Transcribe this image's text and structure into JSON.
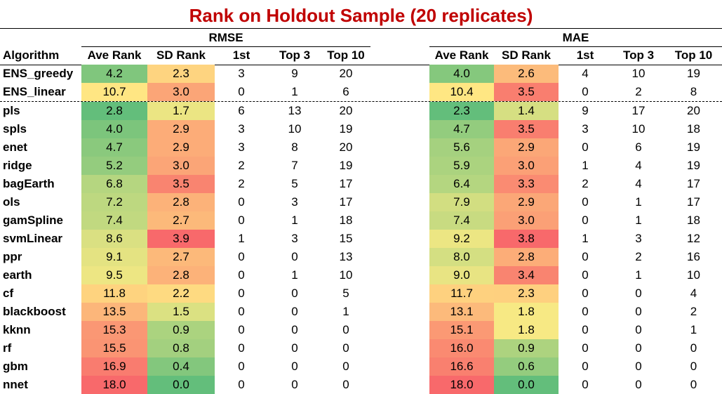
{
  "title": "Rank on Holdout Sample (20 replicates)",
  "groups": [
    "RMSE",
    "MAE"
  ],
  "headers": [
    "Algorithm",
    "Ave Rank",
    "SD Rank",
    "1st",
    "Top 3",
    "Top 10"
  ],
  "colors": {
    "title": "#c00000",
    "low": "#63be7b",
    "mid": "#ffeb84",
    "high": "#f8696b"
  },
  "chart_data": {
    "type": "table",
    "title": "Rank on Holdout Sample (20 replicates)",
    "columns": [
      "Algorithm",
      "Ave Rank",
      "SD Rank",
      "1st",
      "Top 3",
      "Top 10",
      "Ave Rank",
      "SD Rank",
      "1st",
      "Top 3",
      "Top 10"
    ],
    "rows": [
      {
        "algorithm": "ENS_greedy",
        "rmse": [
          "4.2",
          "2.3",
          "3",
          "9",
          "20"
        ],
        "mae": [
          "4.0",
          "2.6",
          "4",
          "10",
          "19"
        ]
      },
      {
        "algorithm": "ENS_linear",
        "rmse": [
          "10.7",
          "3.0",
          "0",
          "1",
          "6"
        ],
        "mae": [
          "10.4",
          "3.5",
          "0",
          "2",
          "8"
        ]
      },
      {
        "algorithm": "pls",
        "rmse": [
          "2.8",
          "1.7",
          "6",
          "13",
          "20"
        ],
        "mae": [
          "2.3",
          "1.4",
          "9",
          "17",
          "20"
        ]
      },
      {
        "algorithm": "spls",
        "rmse": [
          "4.0",
          "2.9",
          "3",
          "10",
          "19"
        ],
        "mae": [
          "4.7",
          "3.5",
          "3",
          "10",
          "18"
        ]
      },
      {
        "algorithm": "enet",
        "rmse": [
          "4.7",
          "2.9",
          "3",
          "8",
          "20"
        ],
        "mae": [
          "5.6",
          "2.9",
          "0",
          "6",
          "19"
        ]
      },
      {
        "algorithm": "ridge",
        "rmse": [
          "5.2",
          "3.0",
          "2",
          "7",
          "19"
        ],
        "mae": [
          "5.9",
          "3.0",
          "1",
          "4",
          "19"
        ]
      },
      {
        "algorithm": "bagEarth",
        "rmse": [
          "6.8",
          "3.5",
          "2",
          "5",
          "17"
        ],
        "mae": [
          "6.4",
          "3.3",
          "2",
          "4",
          "17"
        ]
      },
      {
        "algorithm": "ols",
        "rmse": [
          "7.2",
          "2.8",
          "0",
          "3",
          "17"
        ],
        "mae": [
          "7.9",
          "2.9",
          "0",
          "1",
          "17"
        ]
      },
      {
        "algorithm": "gamSpline",
        "rmse": [
          "7.4",
          "2.7",
          "0",
          "1",
          "18"
        ],
        "mae": [
          "7.4",
          "3.0",
          "0",
          "1",
          "18"
        ]
      },
      {
        "algorithm": "svmLinear",
        "rmse": [
          "8.6",
          "3.9",
          "1",
          "3",
          "15"
        ],
        "mae": [
          "9.2",
          "3.8",
          "1",
          "3",
          "12"
        ]
      },
      {
        "algorithm": "ppr",
        "rmse": [
          "9.1",
          "2.7",
          "0",
          "0",
          "13"
        ],
        "mae": [
          "8.0",
          "2.8",
          "0",
          "2",
          "16"
        ]
      },
      {
        "algorithm": "earth",
        "rmse": [
          "9.5",
          "2.8",
          "0",
          "1",
          "10"
        ],
        "mae": [
          "9.0",
          "3.4",
          "0",
          "1",
          "10"
        ]
      },
      {
        "algorithm": "cf",
        "rmse": [
          "11.8",
          "2.2",
          "0",
          "0",
          "5"
        ],
        "mae": [
          "11.7",
          "2.3",
          "0",
          "0",
          "4"
        ]
      },
      {
        "algorithm": "blackboost",
        "rmse": [
          "13.5",
          "1.5",
          "0",
          "0",
          "1"
        ],
        "mae": [
          "13.1",
          "1.8",
          "0",
          "0",
          "2"
        ]
      },
      {
        "algorithm": "kknn",
        "rmse": [
          "15.3",
          "0.9",
          "0",
          "0",
          "0"
        ],
        "mae": [
          "15.1",
          "1.8",
          "0",
          "0",
          "1"
        ]
      },
      {
        "algorithm": "rf",
        "rmse": [
          "15.5",
          "0.8",
          "0",
          "0",
          "0"
        ],
        "mae": [
          "16.0",
          "0.9",
          "0",
          "0",
          "0"
        ]
      },
      {
        "algorithm": "gbm",
        "rmse": [
          "16.9",
          "0.4",
          "0",
          "0",
          "0"
        ],
        "mae": [
          "16.6",
          "0.6",
          "0",
          "0",
          "0"
        ]
      },
      {
        "algorithm": "nnet",
        "rmse": [
          "18.0",
          "0.0",
          "0",
          "0",
          "0"
        ],
        "mae": [
          "18.0",
          "0.0",
          "0",
          "0",
          "0"
        ]
      }
    ]
  }
}
